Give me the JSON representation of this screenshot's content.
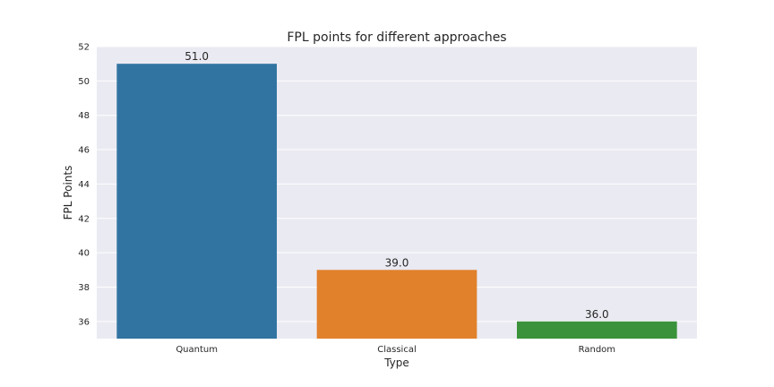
{
  "chart_data": {
    "type": "bar",
    "title": "FPL points for different approaches",
    "xlabel": "Type",
    "ylabel": "FPL Points",
    "categories": [
      "Quantum",
      "Classical",
      "Random"
    ],
    "values": [
      51.0,
      39.0,
      36.0
    ],
    "data_labels": [
      "51.0",
      "39.0",
      "36.0"
    ],
    "colors": [
      "#3274a1",
      "#e1812c",
      "#3a923a"
    ],
    "ylim": [
      35,
      52
    ],
    "yticks": [
      36,
      38,
      40,
      42,
      44,
      46,
      48,
      50,
      52
    ],
    "grid": true,
    "background": "#eaeaf2"
  }
}
